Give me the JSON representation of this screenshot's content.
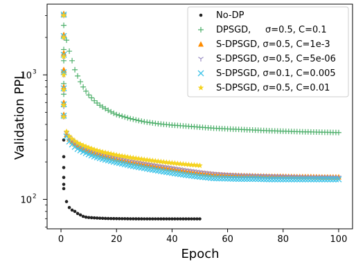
{
  "chart_data": {
    "type": "scatter",
    "xlabel": "Epoch",
    "ylabel": "Validation PPL",
    "xlim": [
      -5,
      105
    ],
    "ylim": [
      58,
      3700
    ],
    "yscale": "log",
    "x_ticks": [
      0,
      20,
      40,
      60,
      80,
      100
    ],
    "y_ticks": [
      {
        "value": 100,
        "base": "10",
        "exp": "2"
      },
      {
        "value": 1000,
        "base": "10",
        "exp": "3"
      }
    ],
    "grid": false,
    "legend_position": "upper right",
    "series": [
      {
        "name": "No-DP",
        "color": "#222222",
        "marker": "dot",
        "points": [
          [
            1,
            300
          ],
          [
            1,
            220
          ],
          [
            1,
            180
          ],
          [
            1,
            150
          ],
          [
            1,
            132
          ],
          [
            1,
            122
          ],
          [
            2,
            96
          ],
          [
            3,
            86
          ],
          [
            4,
            82
          ],
          [
            5,
            80
          ],
          [
            6,
            77
          ],
          [
            7,
            75
          ],
          [
            8,
            73
          ],
          [
            9,
            72
          ],
          [
            10,
            71.5
          ],
          [
            12,
            71
          ],
          [
            14,
            70.6
          ],
          [
            16,
            70.3
          ],
          [
            18,
            70.1
          ],
          [
            20,
            70
          ],
          [
            25,
            69.8
          ],
          [
            30,
            69.7
          ],
          [
            35,
            69.7
          ],
          [
            40,
            69.7
          ],
          [
            45,
            69.7
          ],
          [
            50,
            69.7
          ]
        ]
      },
      {
        "name": "DPSGD,     σ=0.5, C=0.1",
        "color": "#4daf6a",
        "marker": "plus",
        "points": [
          [
            1,
            3100
          ],
          [
            1,
            2500
          ],
          [
            1,
            2000
          ],
          [
            1,
            1600
          ],
          [
            1,
            1300
          ],
          [
            1,
            1050
          ],
          [
            1,
            850
          ],
          [
            1,
            700
          ],
          [
            1,
            560
          ],
          [
            1,
            470
          ],
          [
            2,
            1900
          ],
          [
            3,
            1550
          ],
          [
            4,
            1300
          ],
          [
            5,
            1100
          ],
          [
            6,
            980
          ],
          [
            7,
            880
          ],
          [
            8,
            800
          ],
          [
            9,
            740
          ],
          [
            10,
            690
          ],
          [
            12,
            620
          ],
          [
            14,
            570
          ],
          [
            16,
            535
          ],
          [
            18,
            505
          ],
          [
            20,
            480
          ],
          [
            25,
            445
          ],
          [
            30,
            420
          ],
          [
            35,
            405
          ],
          [
            40,
            395
          ],
          [
            45,
            388
          ],
          [
            50,
            380
          ],
          [
            55,
            373
          ],
          [
            60,
            368
          ],
          [
            65,
            364
          ],
          [
            70,
            360
          ],
          [
            75,
            356
          ],
          [
            80,
            353
          ],
          [
            85,
            350
          ],
          [
            90,
            348
          ],
          [
            95,
            346
          ],
          [
            100,
            344
          ]
        ]
      },
      {
        "name": "S-DPSGD, σ=0.5, C=1e-3",
        "color": "#ff8c00",
        "marker": "triangle",
        "points": [
          [
            1,
            3100
          ],
          [
            1,
            2100
          ],
          [
            1,
            1500
          ],
          [
            1,
            1100
          ],
          [
            1,
            800
          ],
          [
            1,
            600
          ],
          [
            1,
            480
          ],
          [
            2,
            330
          ],
          [
            3,
            305
          ],
          [
            4,
            290
          ],
          [
            5,
            278
          ],
          [
            6,
            268
          ],
          [
            8,
            255
          ],
          [
            10,
            244
          ],
          [
            12,
            235
          ],
          [
            15,
            224
          ],
          [
            20,
            210
          ],
          [
            25,
            199
          ],
          [
            30,
            190
          ],
          [
            35,
            182
          ],
          [
            40,
            175
          ],
          [
            45,
            168
          ],
          [
            50,
            162
          ],
          [
            55,
            158
          ],
          [
            60,
            156
          ],
          [
            65,
            155
          ],
          [
            70,
            154
          ],
          [
            75,
            153
          ],
          [
            80,
            153
          ],
          [
            85,
            152
          ],
          [
            90,
            152
          ],
          [
            95,
            151
          ],
          [
            100,
            151
          ]
        ]
      },
      {
        "name": "S-DPSGD, σ=0.5, C=5e-06",
        "color": "#9b8ec4",
        "marker": "tri",
        "points": [
          [
            1,
            3000
          ],
          [
            1,
            2000
          ],
          [
            1,
            1400
          ],
          [
            1,
            1000
          ],
          [
            1,
            750
          ],
          [
            1,
            560
          ],
          [
            1,
            460
          ],
          [
            2,
            340
          ],
          [
            3,
            312
          ],
          [
            4,
            296
          ],
          [
            5,
            284
          ],
          [
            6,
            274
          ],
          [
            8,
            260
          ],
          [
            10,
            249
          ],
          [
            12,
            240
          ],
          [
            15,
            229
          ],
          [
            20,
            215
          ],
          [
            25,
            204
          ],
          [
            30,
            194
          ],
          [
            35,
            186
          ],
          [
            40,
            179
          ],
          [
            45,
            172
          ],
          [
            50,
            166
          ],
          [
            55,
            161
          ],
          [
            60,
            158
          ],
          [
            65,
            156
          ],
          [
            70,
            155
          ],
          [
            75,
            154
          ],
          [
            80,
            153
          ],
          [
            85,
            152
          ],
          [
            90,
            151
          ],
          [
            95,
            151
          ],
          [
            100,
            150
          ]
        ]
      },
      {
        "name": "S-DPSGD, σ=0.1, C=0.005",
        "color": "#40c4e8",
        "marker": "x",
        "points": [
          [
            1,
            3050
          ],
          [
            1,
            2050
          ],
          [
            1,
            1450
          ],
          [
            1,
            1050
          ],
          [
            1,
            780
          ],
          [
            1,
            580
          ],
          [
            1,
            470
          ],
          [
            2,
            320
          ],
          [
            3,
            292
          ],
          [
            4,
            276
          ],
          [
            5,
            264
          ],
          [
            6,
            254
          ],
          [
            8,
            241
          ],
          [
            10,
            230
          ],
          [
            12,
            221
          ],
          [
            15,
            211
          ],
          [
            20,
            198
          ],
          [
            25,
            187
          ],
          [
            30,
            178
          ],
          [
            35,
            170
          ],
          [
            40,
            163
          ],
          [
            45,
            157
          ],
          [
            50,
            152
          ],
          [
            55,
            148
          ],
          [
            60,
            147
          ],
          [
            65,
            146
          ],
          [
            70,
            146
          ],
          [
            75,
            145
          ],
          [
            80,
            145
          ],
          [
            85,
            145
          ],
          [
            90,
            145
          ],
          [
            95,
            145
          ],
          [
            100,
            145
          ]
        ]
      },
      {
        "name": "S-DPSGD, σ=0.5, C=0.01",
        "color": "#f5d320",
        "marker": "star",
        "points": [
          [
            1,
            3000
          ],
          [
            1,
            2000
          ],
          [
            1,
            1400
          ],
          [
            1,
            1000
          ],
          [
            1,
            760
          ],
          [
            1,
            570
          ],
          [
            1,
            460
          ],
          [
            2,
            350
          ],
          [
            3,
            322
          ],
          [
            4,
            306
          ],
          [
            5,
            294
          ],
          [
            6,
            284
          ],
          [
            8,
            271
          ],
          [
            10,
            260
          ],
          [
            12,
            251
          ],
          [
            15,
            240
          ],
          [
            20,
            227
          ],
          [
            25,
            217
          ],
          [
            30,
            209
          ],
          [
            35,
            202
          ],
          [
            40,
            196
          ],
          [
            45,
            191
          ],
          [
            50,
            187
          ]
        ]
      }
    ]
  }
}
